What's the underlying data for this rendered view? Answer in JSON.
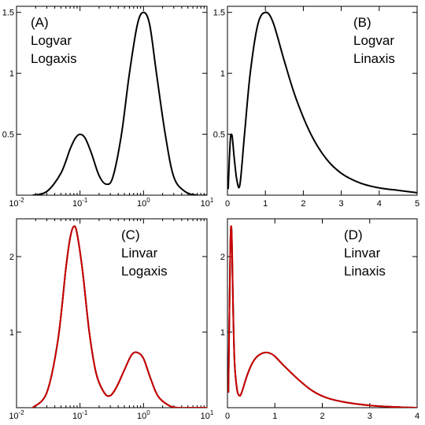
{
  "chart_data": [
    {
      "type": "line",
      "panel_label": [
        "(A)",
        "Logvar",
        "Logaxis"
      ],
      "xscale": "log",
      "xlim": [
        0.01,
        10
      ],
      "ylim": [
        0,
        1.55
      ],
      "xticks": [
        {
          "base": "10",
          "exp": "-2",
          "v": 0.01
        },
        {
          "base": "10",
          "exp": "-1",
          "v": 0.1
        },
        {
          "base": "10",
          "exp": "0",
          "v": 1
        },
        {
          "base": "10",
          "exp": "1",
          "v": 10
        }
      ],
      "yticks": [
        {
          "label": "0.5",
          "v": 0.5
        },
        {
          "label": "1",
          "v": 1
        },
        {
          "label": "1.5",
          "v": 1.5
        }
      ],
      "series": [
        {
          "color": "#000000",
          "x": [
            0.018,
            0.03,
            0.05,
            0.07,
            0.085,
            0.1,
            0.12,
            0.15,
            0.2,
            0.26,
            0.33,
            0.45,
            0.6,
            0.8,
            1.0,
            1.25,
            1.6,
            2.2,
            3.0,
            4.5,
            7.0,
            10.0
          ],
          "y": [
            0.0,
            0.03,
            0.18,
            0.38,
            0.47,
            0.5,
            0.47,
            0.35,
            0.16,
            0.09,
            0.15,
            0.5,
            1.0,
            1.4,
            1.5,
            1.4,
            1.0,
            0.5,
            0.15,
            0.03,
            0.0,
            0.0
          ]
        }
      ]
    },
    {
      "type": "line",
      "panel_label": [
        "(B)",
        "Logvar",
        "Linaxis"
      ],
      "xscale": "linear",
      "xlim": [
        0,
        5
      ],
      "ylim": [
        0,
        1.55
      ],
      "xticks": [
        {
          "label": "0",
          "v": 0
        },
        {
          "label": "1",
          "v": 1
        },
        {
          "label": "2",
          "v": 2
        },
        {
          "label": "3",
          "v": 3
        },
        {
          "label": "4",
          "v": 4
        },
        {
          "label": "5",
          "v": 5
        }
      ],
      "yticks": [
        {
          "label": "0.5",
          "v": 0.5
        },
        {
          "label": "1",
          "v": 1
        },
        {
          "label": "1.5",
          "v": 1.5
        }
      ],
      "series": [
        {
          "color": "#000000",
          "x": [
            0.02,
            0.05,
            0.08,
            0.1,
            0.13,
            0.18,
            0.25,
            0.33,
            0.45,
            0.6,
            0.8,
            1.0,
            1.2,
            1.5,
            1.8,
            2.2,
            2.6,
            3.0,
            3.5,
            4.0,
            4.5,
            5.0
          ],
          "y": [
            0.05,
            0.3,
            0.47,
            0.5,
            0.47,
            0.3,
            0.12,
            0.09,
            0.5,
            1.0,
            1.4,
            1.5,
            1.42,
            1.1,
            0.8,
            0.5,
            0.3,
            0.18,
            0.1,
            0.06,
            0.04,
            0.02
          ]
        }
      ]
    },
    {
      "type": "line",
      "panel_label": [
        "(C)",
        "Linvar",
        "Logaxis"
      ],
      "xscale": "log",
      "xlim": [
        0.01,
        10
      ],
      "ylim": [
        0,
        2.5
      ],
      "xticks": [
        {
          "base": "10",
          "exp": "-2",
          "v": 0.01
        },
        {
          "base": "10",
          "exp": "-1",
          "v": 0.1
        },
        {
          "base": "10",
          "exp": "0",
          "v": 1
        },
        {
          "base": "10",
          "exp": "1",
          "v": 10
        }
      ],
      "yticks": [
        {
          "label": "1",
          "v": 1
        },
        {
          "label": "2",
          "v": 2
        }
      ],
      "series": [
        {
          "color": "#000000",
          "x": [
            0.018,
            0.03,
            0.045,
            0.06,
            0.07,
            0.08,
            0.09,
            0.11,
            0.14,
            0.18,
            0.24,
            0.3,
            0.38,
            0.5,
            0.65,
            0.8,
            1.0,
            1.3,
            1.7,
            2.5,
            3.5,
            6.0,
            10.0
          ],
          "y": [
            0.0,
            0.2,
            0.9,
            1.85,
            2.25,
            2.4,
            2.3,
            1.8,
            1.0,
            0.45,
            0.2,
            0.16,
            0.28,
            0.5,
            0.7,
            0.73,
            0.65,
            0.38,
            0.15,
            0.03,
            0.0,
            0.0,
            0.0
          ]
        },
        {
          "color": "#cc0000",
          "x": [
            0.018,
            0.03,
            0.045,
            0.06,
            0.07,
            0.08,
            0.09,
            0.11,
            0.14,
            0.18,
            0.24,
            0.3,
            0.38,
            0.5,
            0.65,
            0.8,
            1.0,
            1.3,
            1.7,
            2.5,
            3.5,
            6.0,
            10.0
          ],
          "y": [
            0.0,
            0.2,
            0.9,
            1.85,
            2.25,
            2.4,
            2.3,
            1.8,
            1.0,
            0.45,
            0.2,
            0.16,
            0.28,
            0.5,
            0.7,
            0.73,
            0.65,
            0.38,
            0.15,
            0.03,
            0.0,
            0.0,
            0.0
          ]
        }
      ]
    },
    {
      "type": "line",
      "panel_label": [
        "(D)",
        "Linvar",
        "Linaxis"
      ],
      "xscale": "linear",
      "xlim": [
        0,
        4
      ],
      "ylim": [
        0,
        2.5
      ],
      "xticks": [
        {
          "label": "0",
          "v": 0
        },
        {
          "label": "1",
          "v": 1
        },
        {
          "label": "2",
          "v": 2
        },
        {
          "label": "3",
          "v": 3
        },
        {
          "label": "4",
          "v": 4
        }
      ],
      "yticks": [
        {
          "label": "1",
          "v": 1
        },
        {
          "label": "2",
          "v": 2
        }
      ],
      "series": [
        {
          "color": "#000000",
          "x": [
            0.02,
            0.04,
            0.06,
            0.07,
            0.08,
            0.09,
            0.1,
            0.12,
            0.15,
            0.2,
            0.25,
            0.3,
            0.4,
            0.5,
            0.6,
            0.7,
            0.8,
            0.9,
            1.0,
            1.2,
            1.5,
            1.8,
            2.1,
            2.5,
            3.0,
            3.5,
            4.0
          ],
          "y": [
            0.2,
            1.2,
            2.1,
            2.35,
            2.4,
            2.3,
            2.0,
            1.3,
            0.6,
            0.25,
            0.16,
            0.2,
            0.4,
            0.56,
            0.66,
            0.71,
            0.73,
            0.72,
            0.68,
            0.55,
            0.37,
            0.22,
            0.13,
            0.07,
            0.03,
            0.01,
            0.0
          ]
        },
        {
          "color": "#cc0000",
          "x": [
            0.02,
            0.04,
            0.06,
            0.07,
            0.08,
            0.09,
            0.1,
            0.12,
            0.15,
            0.2,
            0.25,
            0.3,
            0.4,
            0.5,
            0.6,
            0.7,
            0.8,
            0.9,
            1.0,
            1.2,
            1.5,
            1.8,
            2.1,
            2.5,
            3.0,
            3.5,
            4.0
          ],
          "y": [
            0.2,
            1.2,
            2.1,
            2.35,
            2.4,
            2.3,
            2.0,
            1.3,
            0.6,
            0.25,
            0.16,
            0.2,
            0.4,
            0.56,
            0.66,
            0.71,
            0.73,
            0.72,
            0.68,
            0.55,
            0.37,
            0.22,
            0.13,
            0.07,
            0.03,
            0.01,
            0.0
          ]
        }
      ]
    }
  ]
}
